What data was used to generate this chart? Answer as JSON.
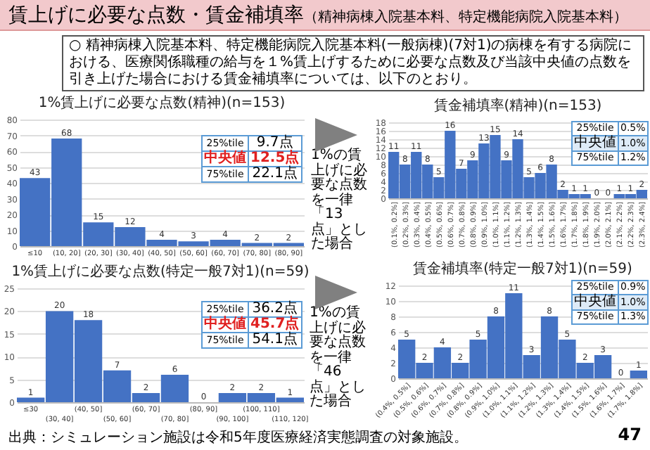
{
  "chart_data": [
    {
      "type": "other",
      "title": "賃上げに必要な点数・賃金補填率（精神病棟入院基本料、特定機能病院入院基本料）",
      "subtitle": "○ 精神病棟入院基本料、特定機能病院入院基本料(一般病棟)(7対1)の病棟を有する病院における、医療関係職種の給与を１%賃上げするために必要な点数及び当該中央値の点数を引き上げた場合における賃金補填率については、以下のとおり。",
      "annotations": [
        "出典：シミュレーション施設は令和5年度医療経済実態調査の対象施設。",
        "47"
      ]
    },
    {
      "type": "bar",
      "title": "1%賃上げに必要な点数(精神)(n=153)",
      "categories": [
        "≤10",
        "(10, 20]",
        "(20, 30]",
        "(30, 40]",
        "(40, 50]",
        "(50, 60]",
        "(60, 70]",
        "(70, 80]",
        "(80, 90]"
      ],
      "values": [
        43,
        68,
        15,
        12,
        4,
        3,
        4,
        2,
        2
      ],
      "color": "#4472c4",
      "ylim": [
        0,
        80
      ],
      "yticks": [
        0,
        10,
        20,
        30,
        40,
        50,
        60,
        70,
        80
      ],
      "grid": "y",
      "data_labels": true,
      "annotations": [
        "25%tile",
        "9.7点",
        "中央値",
        "12.5点",
        "75%tile",
        "22.1点"
      ]
    },
    {
      "type": "bar",
      "title": "賃金補填率(精神)(n=153)",
      "categories": [
        "(0.1%, 0.2%]",
        "(0.2%, 0.3%]",
        "(0.3%, 0.4%]",
        "(0.4%, 0.5%]",
        "(0.5%, 0.6%]",
        "(0.6%, 0.7%]",
        "(0.7%, 0.8%]",
        "(0.8%, 0.9%]",
        "(0.9%, 1.0%]",
        "(1.0%, 1.1%]",
        "(1.1%, 1.2%]",
        "(1.2%, 1.3%]",
        "(1.3%, 1.4%]",
        "(1.4%, 1.5%]",
        "(1.5%, 1.6%]",
        "(1.6%, 1.7%]",
        "(1.7%, 1.8%]",
        "(1.8%, 1.9%]",
        "(1.9%, 2.0%]",
        "(2.0%, 2.1%]",
        "(2.1%, 2.2%]",
        "(2.2%, 2.3%]",
        "(2.3%, 2.4%]"
      ],
      "values": [
        11,
        8,
        11,
        8,
        5,
        16,
        7,
        9,
        13,
        15,
        9,
        14,
        5,
        6,
        8,
        2,
        1,
        1,
        0,
        0,
        1,
        1,
        2
      ],
      "color": "#4472c4",
      "ylim": [
        0,
        18
      ],
      "yticks": [
        0,
        2,
        4,
        6,
        8,
        10,
        12,
        14,
        16,
        18
      ],
      "grid": "y",
      "data_labels": true,
      "annotations": [
        "1%の賃上げに必要な点数を一律「13点」とした場合",
        "25%tile",
        "0.5%",
        "中央値",
        "1.0%",
        "75%tile",
        "1.2%"
      ]
    },
    {
      "type": "bar",
      "title": "1%賃上げに必要な点数(特定一般7対1)(n=59)",
      "categories": [
        "≤30",
        "(30, 40]",
        "(40, 50]",
        "(50, 60]",
        "(60, 70]",
        "(70, 80]",
        "(80, 90]",
        "(90, 100]",
        "(100, 110]",
        "(110, 120]"
      ],
      "values": [
        1,
        20,
        18,
        7,
        2,
        6,
        0,
        2,
        2,
        1
      ],
      "color": "#4472c4",
      "ylim": [
        0,
        25
      ],
      "yticks": [
        0,
        5,
        10,
        15,
        20,
        25
      ],
      "grid": "y",
      "data_labels": true,
      "annotations": [
        "25%tile",
        "36.2点",
        "中央値",
        "45.7点",
        "75%tile",
        "54.1点"
      ]
    },
    {
      "type": "bar",
      "title": "賃金補填率(特定一般7対1)(n=59)",
      "categories": [
        "(0.4%, 0.5%]",
        "(0.5%, 0.6%]",
        "(0.6%, 0.7%]",
        "(0.7%, 0.8%]",
        "(0.8%, 0.9%]",
        "(0.9%, 1.0%]",
        "(1.0%, 1.1%]",
        "(1.1%, 1.2%]",
        "(1.2%, 1.3%]",
        "(1.3%, 1.4%]",
        "(1.4%, 1.5%]",
        "(1.5%, 1.6%]",
        "(1.6%, 1.7%]",
        "(1.7%, 1.8%]"
      ],
      "values": [
        5,
        2,
        4,
        2,
        5,
        8,
        11,
        3,
        8,
        5,
        2,
        3,
        0,
        1
      ],
      "color": "#4472c4",
      "ylim": [
        0,
        12
      ],
      "yticks": [
        0,
        2,
        4,
        6,
        8,
        10,
        12
      ],
      "grid": "y",
      "data_labels": true,
      "annotations": [
        "1%の賃上げに必要な点数を一律「46点」とした場合",
        "25%tile",
        "0.9%",
        "中央値",
        "1.0%",
        "75%tile",
        "1.3%"
      ]
    }
  ]
}
